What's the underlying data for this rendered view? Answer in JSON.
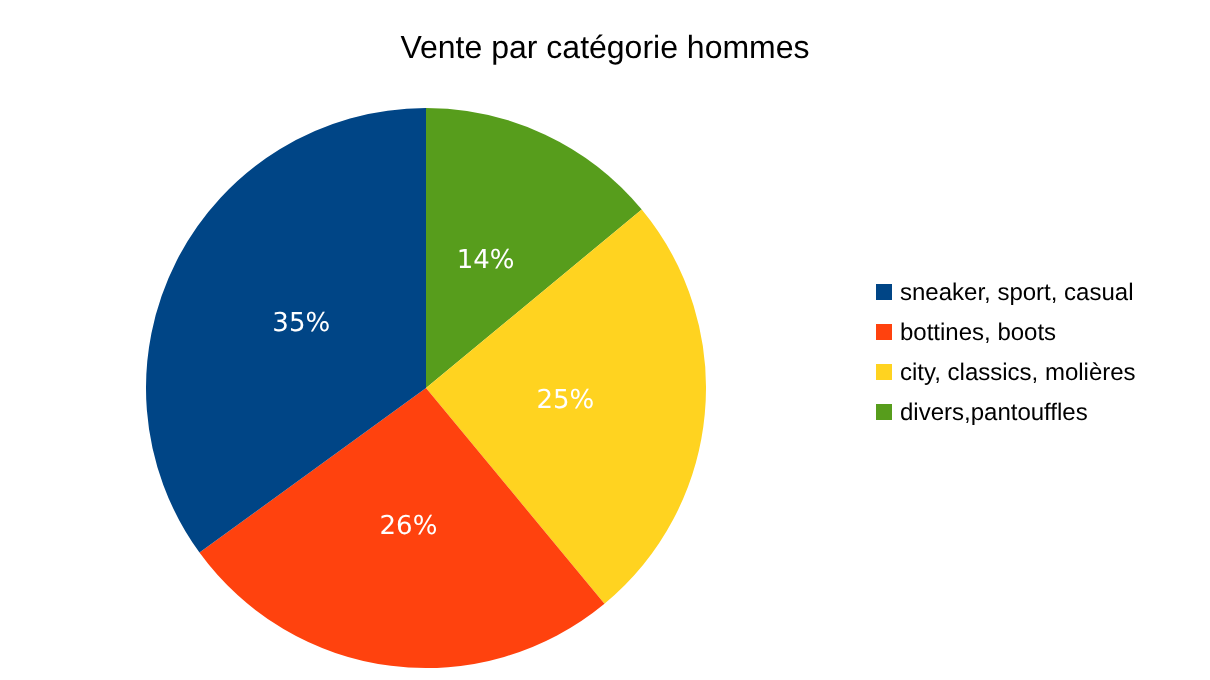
{
  "chart_data": {
    "type": "pie",
    "title": "Vente par catégorie hommes",
    "categories": [
      "sneaker, sport, casual",
      "bottines, boots",
      "city, classics, molières",
      "divers,pantouffles"
    ],
    "values": [
      35,
      26,
      25,
      14
    ],
    "colors": [
      "#004586",
      "#ff420e",
      "#ffd320",
      "#579d1c"
    ],
    "value_labels": [
      "35%",
      "26%",
      "25%",
      "14%"
    ],
    "legend": "right"
  }
}
